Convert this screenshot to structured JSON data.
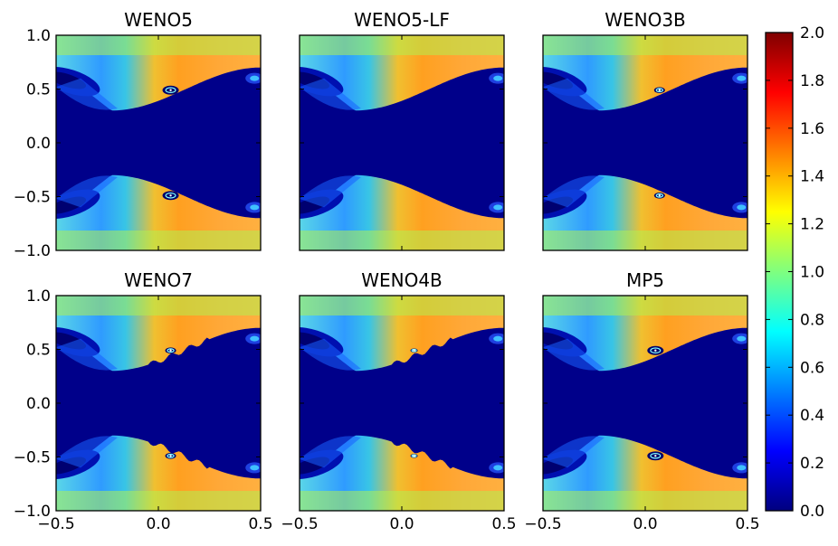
{
  "chart_data": {
    "type": "heatmap",
    "layout": {
      "rows": 2,
      "cols": 3
    },
    "panels": [
      {
        "title": "WENO5",
        "vortex": {
          "x": 0.06,
          "size": "large"
        },
        "ripples": "none"
      },
      {
        "title": "WENO5-LF",
        "vortex": {
          "x": 0.06,
          "size": "none"
        },
        "ripples": "none"
      },
      {
        "title": "WENO3B",
        "vortex": {
          "x": 0.07,
          "size": "small"
        },
        "ripples": "none"
      },
      {
        "title": "WENO7",
        "vortex": {
          "x": 0.06,
          "size": "small"
        },
        "ripples": "strong"
      },
      {
        "title": "WENO4B",
        "vortex": {
          "x": 0.06,
          "size": "tiny"
        },
        "ripples": "strong"
      },
      {
        "title": "MP5",
        "vortex": {
          "x": 0.05,
          "size": "large"
        },
        "ripples": "none"
      }
    ],
    "xlim": [
      -0.5,
      0.5
    ],
    "ylim": [
      -1.0,
      1.0
    ],
    "x_ticks": [
      -0.5,
      0.0,
      0.5
    ],
    "x_tick_labels": [
      "−0.5",
      "0.0",
      "0.5"
    ],
    "y_ticks": [
      1.0,
      0.5,
      0.0,
      -0.5,
      -1.0
    ],
    "y_tick_labels": [
      "1.0",
      "0.5",
      "0.0",
      "−0.5",
      "−1.0"
    ],
    "colorbar": {
      "colormap": "jet",
      "range": [
        0.0,
        2.0
      ],
      "ticks": [
        0.0,
        0.2,
        0.4,
        0.6,
        0.8,
        1.0,
        1.2,
        1.4,
        1.6,
        1.8,
        2.0
      ],
      "tick_labels": [
        "0.0",
        "0.2",
        "0.4",
        "0.6",
        "0.8",
        "1.0",
        "1.2",
        "1.4",
        "1.6",
        "1.8",
        "2.0"
      ],
      "colors": [
        "#00007f",
        "#0000ff",
        "#007fff",
        "#00ffff",
        "#7fff7f",
        "#ffff00",
        "#ff7f00",
        "#ff0000",
        "#7f0000"
      ]
    },
    "field": {
      "background_value": 0.0,
      "outer_band_value": 1.2,
      "interface_y_at_x": [
        [
          -0.5,
          0.7
        ],
        [
          -0.2,
          0.3
        ],
        [
          0.1,
          0.53
        ],
        [
          0.5,
          0.7
        ]
      ]
    }
  }
}
